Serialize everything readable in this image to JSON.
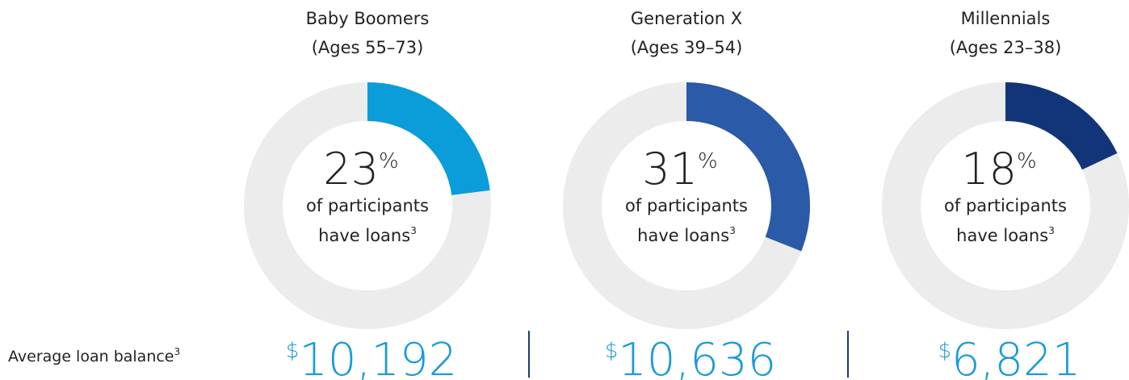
{
  "chart_data": [
    {
      "type": "donut",
      "title": "Baby Boomers",
      "subtitle": "(Ages 55–73)",
      "value": 23,
      "unit": "%",
      "caption_lines": [
        "of participants",
        "have loans"
      ],
      "footnote": "3",
      "color": "#0a9dd9",
      "track_color": "#ececec"
    },
    {
      "type": "donut",
      "title": "Generation X",
      "subtitle": "(Ages 39–54)",
      "value": 31,
      "unit": "%",
      "caption_lines": [
        "of participants",
        "have loans"
      ],
      "footnote": "3",
      "color": "#2a5aa8",
      "track_color": "#ececec"
    },
    {
      "type": "donut",
      "title": "Millennials",
      "subtitle": "(Ages 23–38)",
      "value": 18,
      "unit": "%",
      "caption_lines": [
        "of participants",
        "have loans"
      ],
      "footnote": "3",
      "color": "#12357a",
      "track_color": "#ececec"
    }
  ],
  "loan_balance": {
    "label": "Average loan balance",
    "footnote": "3",
    "currency_symbol": "$",
    "values": [
      10192,
      10636,
      6821
    ],
    "value_labels": [
      "10,192",
      "10,636",
      "6,821"
    ],
    "color": "#1a9bd7"
  }
}
